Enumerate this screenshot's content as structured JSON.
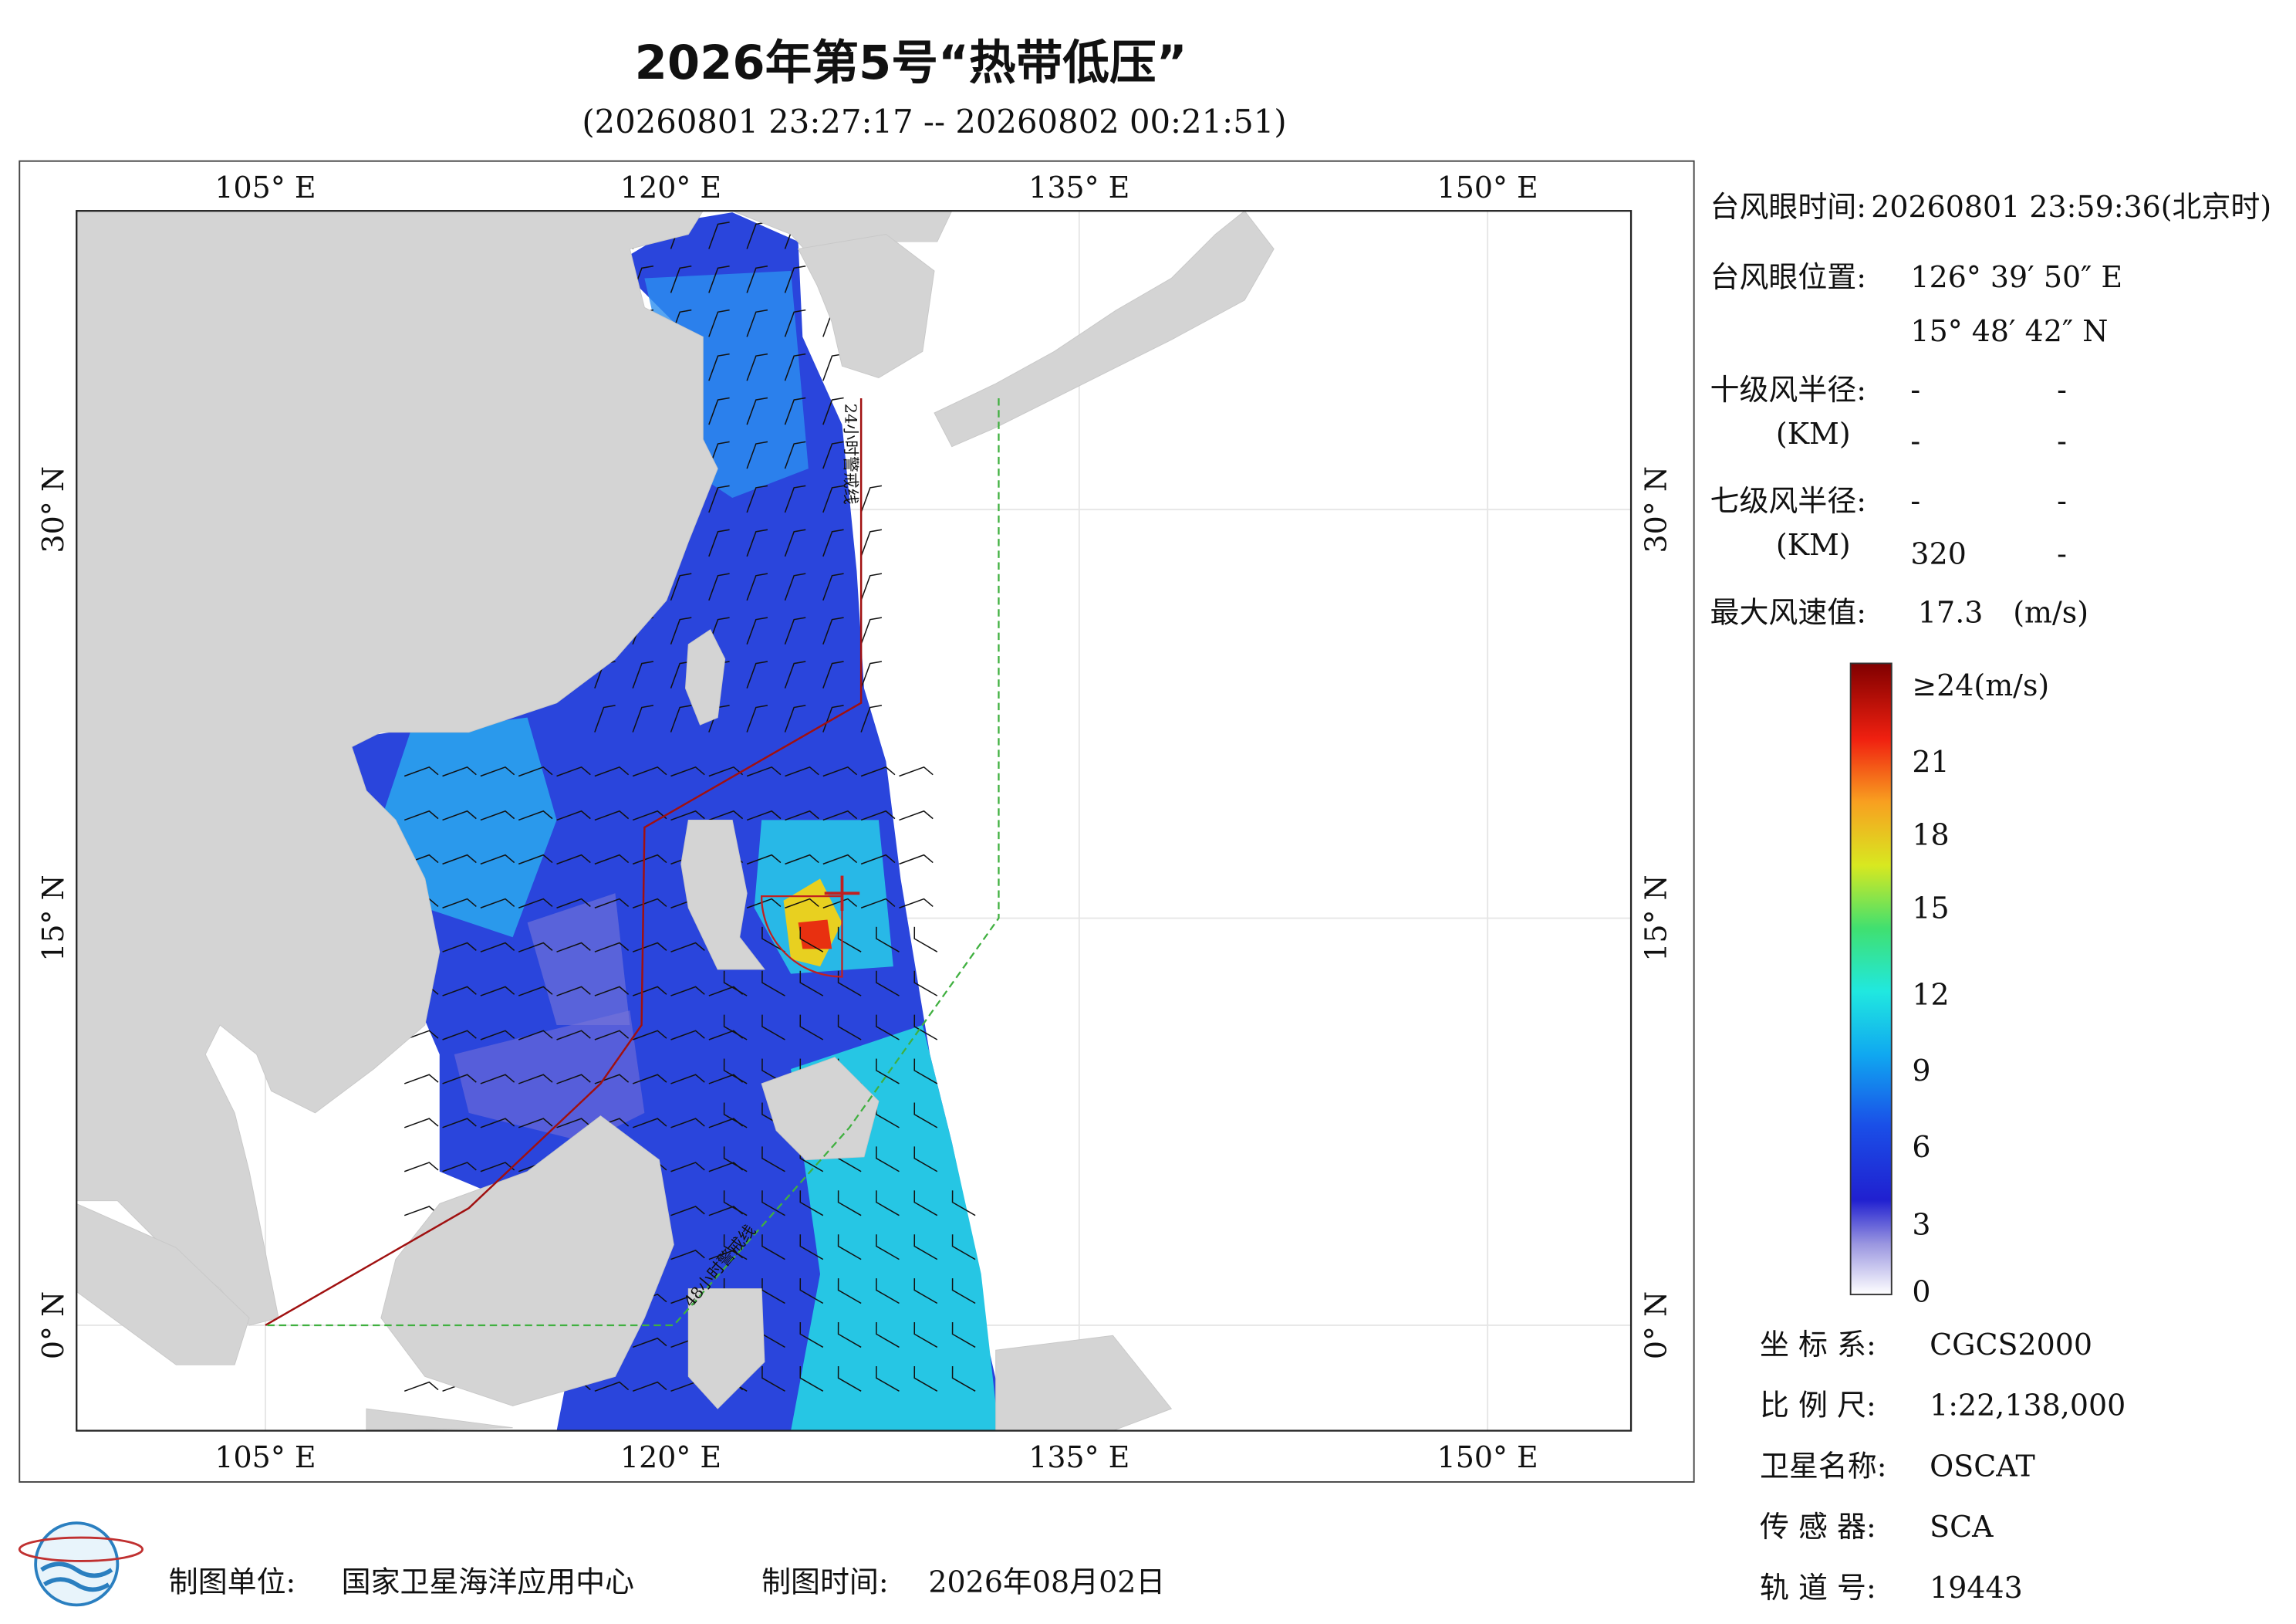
{
  "header": {
    "title": "2026年第5号“热带低压”",
    "subtitle": "(20260801 23:27:17 -- 20260802 00:21:51)"
  },
  "map": {
    "lon_labels": [
      "105° E",
      "120° E",
      "135° E",
      "150° E"
    ],
    "lat_labels": [
      "30° N",
      "15° N",
      "0° N"
    ],
    "line_labels": [
      "24小时警戒线",
      "48小时警戒线"
    ]
  },
  "info": {
    "eye_time": {
      "label": "台风眼时间:",
      "value": "20260801 23:59:36(北京时)"
    },
    "eye_position": {
      "label": "台风眼位置:",
      "lon": "126° 39′ 50″ E",
      "lat": "15° 48′ 42″ N"
    },
    "grade10_radius": {
      "label": "十级风半径:",
      "unit": "(KM)",
      "values": [
        "-",
        "-",
        "-",
        "-"
      ]
    },
    "grade7_radius": {
      "label": "七级风半径:",
      "unit": "(KM)",
      "values": [
        "-",
        "-",
        "320",
        "-"
      ]
    },
    "max_wind": {
      "label": "最大风速值:",
      "value": "17.3",
      "unit": "(m/s)"
    }
  },
  "colorbar": {
    "labels": [
      "≥24(m/s)",
      "21",
      "18",
      "15",
      "12",
      "9",
      "6",
      "3",
      "0"
    ]
  },
  "meta": [
    {
      "label": "坐 标 系:",
      "value": "CGCS2000"
    },
    {
      "label": "比 例 尺:",
      "value": "1:22,138,000"
    },
    {
      "label": "卫星名称:",
      "value": "OSCAT"
    },
    {
      "label": "传 感 器:",
      "value": "SCA"
    },
    {
      "label": "轨 道 号:",
      "value": "19443"
    }
  ],
  "footer": {
    "unit_label": "制图单位:",
    "unit": "国家卫星海洋应用中心",
    "time_label": "制图时间:",
    "time": "2026年08月02日"
  }
}
